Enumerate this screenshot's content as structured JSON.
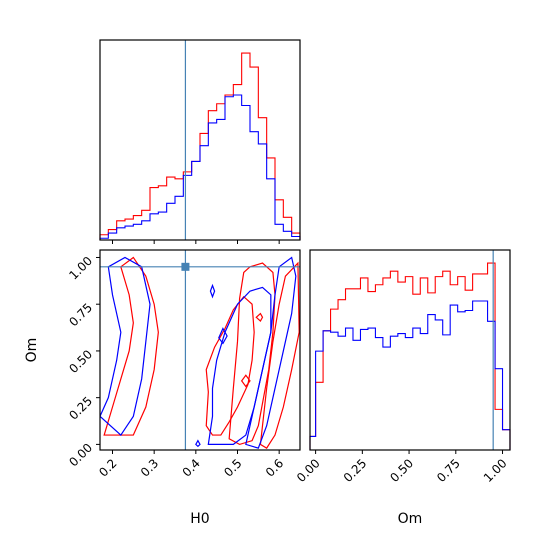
{
  "chart_data": {
    "type": "corner",
    "colors": {
      "red": "#ff0000",
      "blue": "#0000ff",
      "truth": "#4682b4"
    },
    "truth": {
      "H0": 0.375,
      "Om": 0.95
    },
    "parameters": [
      "H0",
      "Om"
    ],
    "axes": {
      "H0": {
        "label": "H0",
        "xlim": [
          0.17,
          0.65
        ],
        "ticks": [
          0.2,
          0.3,
          0.4,
          0.5,
          0.6
        ],
        "tick_labels": [
          "0.2",
          "0.3",
          "0.4",
          "0.5",
          "0.6"
        ]
      },
      "Om": {
        "label": "Om",
        "lim": [
          -0.03,
          1.04
        ],
        "ticks": [
          0.0,
          0.25,
          0.5,
          0.75,
          1.0
        ],
        "tick_labels": [
          "0.00",
          "0.25",
          "0.50",
          "0.75",
          "1.00"
        ]
      }
    },
    "hist_H0": {
      "type": "step-histogram",
      "edges": [
        0.17,
        0.19,
        0.21,
        0.23,
        0.25,
        0.27,
        0.29,
        0.31,
        0.33,
        0.35,
        0.37,
        0.39,
        0.41,
        0.43,
        0.45,
        0.47,
        0.49,
        0.51,
        0.53,
        0.55,
        0.57,
        0.59,
        0.61,
        0.63,
        0.65
      ],
      "series": [
        {
          "color": "red",
          "values": [
            3,
            6,
            11,
            12,
            14,
            17,
            30,
            31,
            36,
            35,
            39,
            45,
            61,
            74,
            78,
            83,
            89,
            107,
            99,
            70,
            47,
            23,
            13,
            4
          ]
        },
        {
          "color": "blue",
          "values": [
            1,
            4,
            7,
            8,
            9,
            11,
            15,
            16,
            21,
            25,
            37,
            45,
            54,
            67,
            69,
            82,
            83,
            77,
            62,
            55,
            35,
            9,
            5,
            2
          ]
        }
      ]
    },
    "hist_Om": {
      "type": "step-histogram",
      "edges": [
        -0.03,
        0.0,
        0.04,
        0.08,
        0.12,
        0.16,
        0.2,
        0.24,
        0.28,
        0.32,
        0.36,
        0.4,
        0.44,
        0.48,
        0.52,
        0.56,
        0.6,
        0.64,
        0.68,
        0.72,
        0.76,
        0.8,
        0.84,
        0.88,
        0.92,
        0.96,
        1.0,
        1.04
      ],
      "series": [
        {
          "color": "red",
          "values": [
            10,
            50,
            88,
            104,
            111,
            119,
            119,
            127,
            117,
            122,
            127,
            132,
            124,
            128,
            115,
            127,
            116,
            128,
            132,
            122,
            128,
            118,
            130,
            130,
            138,
            30,
            15
          ]
        },
        {
          "color": "blue",
          "values": [
            10,
            73,
            88,
            87,
            84,
            90,
            81,
            89,
            90,
            83,
            76,
            84,
            86,
            83,
            90,
            86,
            100,
            96,
            85,
            107,
            102,
            103,
            110,
            110,
            95,
            60,
            15
          ]
        }
      ]
    },
    "contours": [
      {
        "color": "red",
        "level": "inner",
        "points": [
          [
            0.425,
            0.1
          ],
          [
            0.43,
            0.28
          ],
          [
            0.425,
            0.4
          ],
          [
            0.445,
            0.52
          ],
          [
            0.47,
            0.62
          ],
          [
            0.49,
            0.72
          ],
          [
            0.515,
            0.79
          ],
          [
            0.535,
            0.75
          ],
          [
            0.54,
            0.6
          ],
          [
            0.535,
            0.45
          ],
          [
            0.525,
            0.32
          ],
          [
            0.5,
            0.2
          ],
          [
            0.48,
            0.12
          ],
          [
            0.46,
            0.05
          ],
          [
            0.44,
            0.05
          ]
        ]
      },
      {
        "color": "red",
        "level": "middle",
        "points": [
          [
            0.48,
            0.03
          ],
          [
            0.49,
            0.3
          ],
          [
            0.5,
            0.55
          ],
          [
            0.505,
            0.78
          ],
          [
            0.515,
            0.92
          ],
          [
            0.53,
            0.95
          ],
          [
            0.56,
            0.97
          ],
          [
            0.585,
            0.92
          ],
          [
            0.59,
            0.8
          ],
          [
            0.585,
            0.6
          ],
          [
            0.575,
            0.4
          ],
          [
            0.56,
            0.22
          ],
          [
            0.55,
            0.1
          ],
          [
            0.535,
            0.02
          ],
          [
            0.505,
            0.0
          ]
        ]
      },
      {
        "color": "red",
        "level": "outer",
        "points": [
          [
            0.555,
            0.0
          ],
          [
            0.57,
            0.3
          ],
          [
            0.585,
            0.55
          ],
          [
            0.6,
            0.75
          ],
          [
            0.615,
            0.9
          ],
          [
            0.645,
            0.97
          ],
          [
            0.648,
            0.6
          ],
          [
            0.63,
            0.4
          ],
          [
            0.61,
            0.2
          ],
          [
            0.59,
            0.05
          ],
          [
            0.57,
            -0.02
          ]
        ]
      },
      {
        "color": "red",
        "level": "left",
        "points": [
          [
            0.18,
            0.05
          ],
          [
            0.2,
            0.2
          ],
          [
            0.22,
            0.35
          ],
          [
            0.24,
            0.5
          ],
          [
            0.25,
            0.65
          ],
          [
            0.24,
            0.8
          ],
          [
            0.22,
            0.95
          ],
          [
            0.25,
            1.0
          ],
          [
            0.28,
            0.9
          ],
          [
            0.3,
            0.75
          ],
          [
            0.31,
            0.6
          ],
          [
            0.3,
            0.4
          ],
          [
            0.28,
            0.2
          ],
          [
            0.25,
            0.05
          ]
        ]
      },
      {
        "color": "red",
        "level": "small",
        "points": [
          [
            0.545,
            0.68
          ],
          [
            0.555,
            0.7
          ],
          [
            0.56,
            0.68
          ],
          [
            0.555,
            0.66
          ]
        ]
      },
      {
        "color": "red",
        "level": "small",
        "points": [
          [
            0.51,
            0.34
          ],
          [
            0.52,
            0.37
          ],
          [
            0.53,
            0.34
          ],
          [
            0.52,
            0.31
          ]
        ]
      },
      {
        "color": "blue",
        "level": "inner",
        "points": [
          [
            0.43,
            0.0
          ],
          [
            0.44,
            0.15
          ],
          [
            0.44,
            0.3
          ],
          [
            0.45,
            0.45
          ],
          [
            0.47,
            0.6
          ],
          [
            0.5,
            0.75
          ],
          [
            0.53,
            0.82
          ],
          [
            0.56,
            0.84
          ],
          [
            0.58,
            0.8
          ],
          [
            0.58,
            0.6
          ],
          [
            0.56,
            0.4
          ],
          [
            0.54,
            0.2
          ],
          [
            0.52,
            0.05
          ],
          [
            0.49,
            0.0
          ]
        ]
      },
      {
        "color": "blue",
        "level": "outer",
        "points": [
          [
            0.52,
            0.0
          ],
          [
            0.54,
            0.2
          ],
          [
            0.56,
            0.4
          ],
          [
            0.58,
            0.6
          ],
          [
            0.59,
            0.8
          ],
          [
            0.6,
            0.95
          ],
          [
            0.63,
            1.0
          ],
          [
            0.64,
            0.9
          ],
          [
            0.63,
            0.7
          ],
          [
            0.61,
            0.5
          ],
          [
            0.59,
            0.3
          ],
          [
            0.57,
            0.1
          ],
          [
            0.55,
            -0.02
          ]
        ]
      },
      {
        "color": "blue",
        "level": "left",
        "points": [
          [
            0.17,
            0.15
          ],
          [
            0.19,
            0.25
          ],
          [
            0.21,
            0.45
          ],
          [
            0.22,
            0.6
          ],
          [
            0.2,
            0.8
          ],
          [
            0.19,
            0.95
          ],
          [
            0.23,
            1.0
          ],
          [
            0.27,
            0.95
          ],
          [
            0.29,
            0.75
          ],
          [
            0.28,
            0.55
          ],
          [
            0.27,
            0.35
          ],
          [
            0.25,
            0.15
          ],
          [
            0.22,
            0.05
          ]
        ]
      },
      {
        "color": "blue",
        "level": "small",
        "points": [
          [
            0.405,
            0.02
          ],
          [
            0.41,
            0.0
          ],
          [
            0.405,
            -0.01
          ],
          [
            0.4,
            0.0
          ]
        ]
      },
      {
        "color": "blue",
        "level": "small",
        "points": [
          [
            0.435,
            0.82
          ],
          [
            0.44,
            0.85
          ],
          [
            0.445,
            0.82
          ],
          [
            0.44,
            0.79
          ]
        ]
      },
      {
        "color": "blue",
        "level": "small",
        "points": [
          [
            0.455,
            0.57
          ],
          [
            0.465,
            0.62
          ],
          [
            0.475,
            0.58
          ],
          [
            0.465,
            0.54
          ]
        ]
      }
    ]
  }
}
